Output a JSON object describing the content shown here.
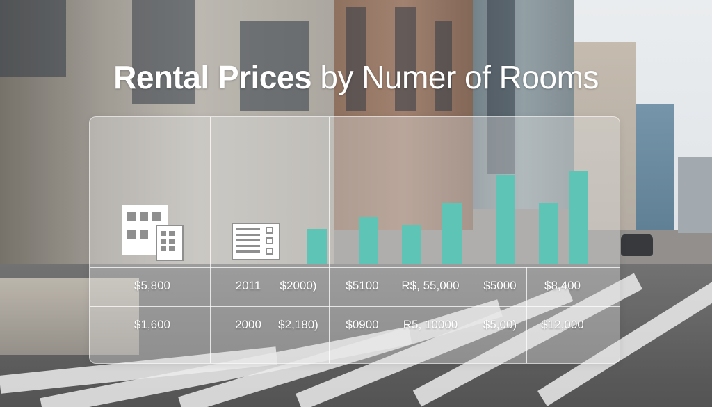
{
  "title": {
    "part1": "Rental Prices",
    "part2": "by Numer of Rooms"
  },
  "icons": [
    "building-icon",
    "form-list-icon"
  ],
  "chart_data": {
    "type": "bar",
    "title": "Rental Prices by Numer of Rooms",
    "values": [
      3,
      4,
      3.3,
      5.2,
      7.6,
      5.2,
      7.9
    ],
    "bar_color": "#5ec4b6",
    "ylim": [
      0,
      10
    ],
    "grid": false,
    "legend": "none"
  },
  "table": {
    "rows": [
      [
        "$5,800",
        "2011",
        "$2000)",
        "$5100",
        "R$, 55,000",
        "$5000",
        "$8,400"
      ],
      [
        "$1,600",
        "2000",
        "$2,180)",
        "$0900",
        "R5, 10000",
        "$5,00)",
        "$12,000"
      ]
    ]
  }
}
